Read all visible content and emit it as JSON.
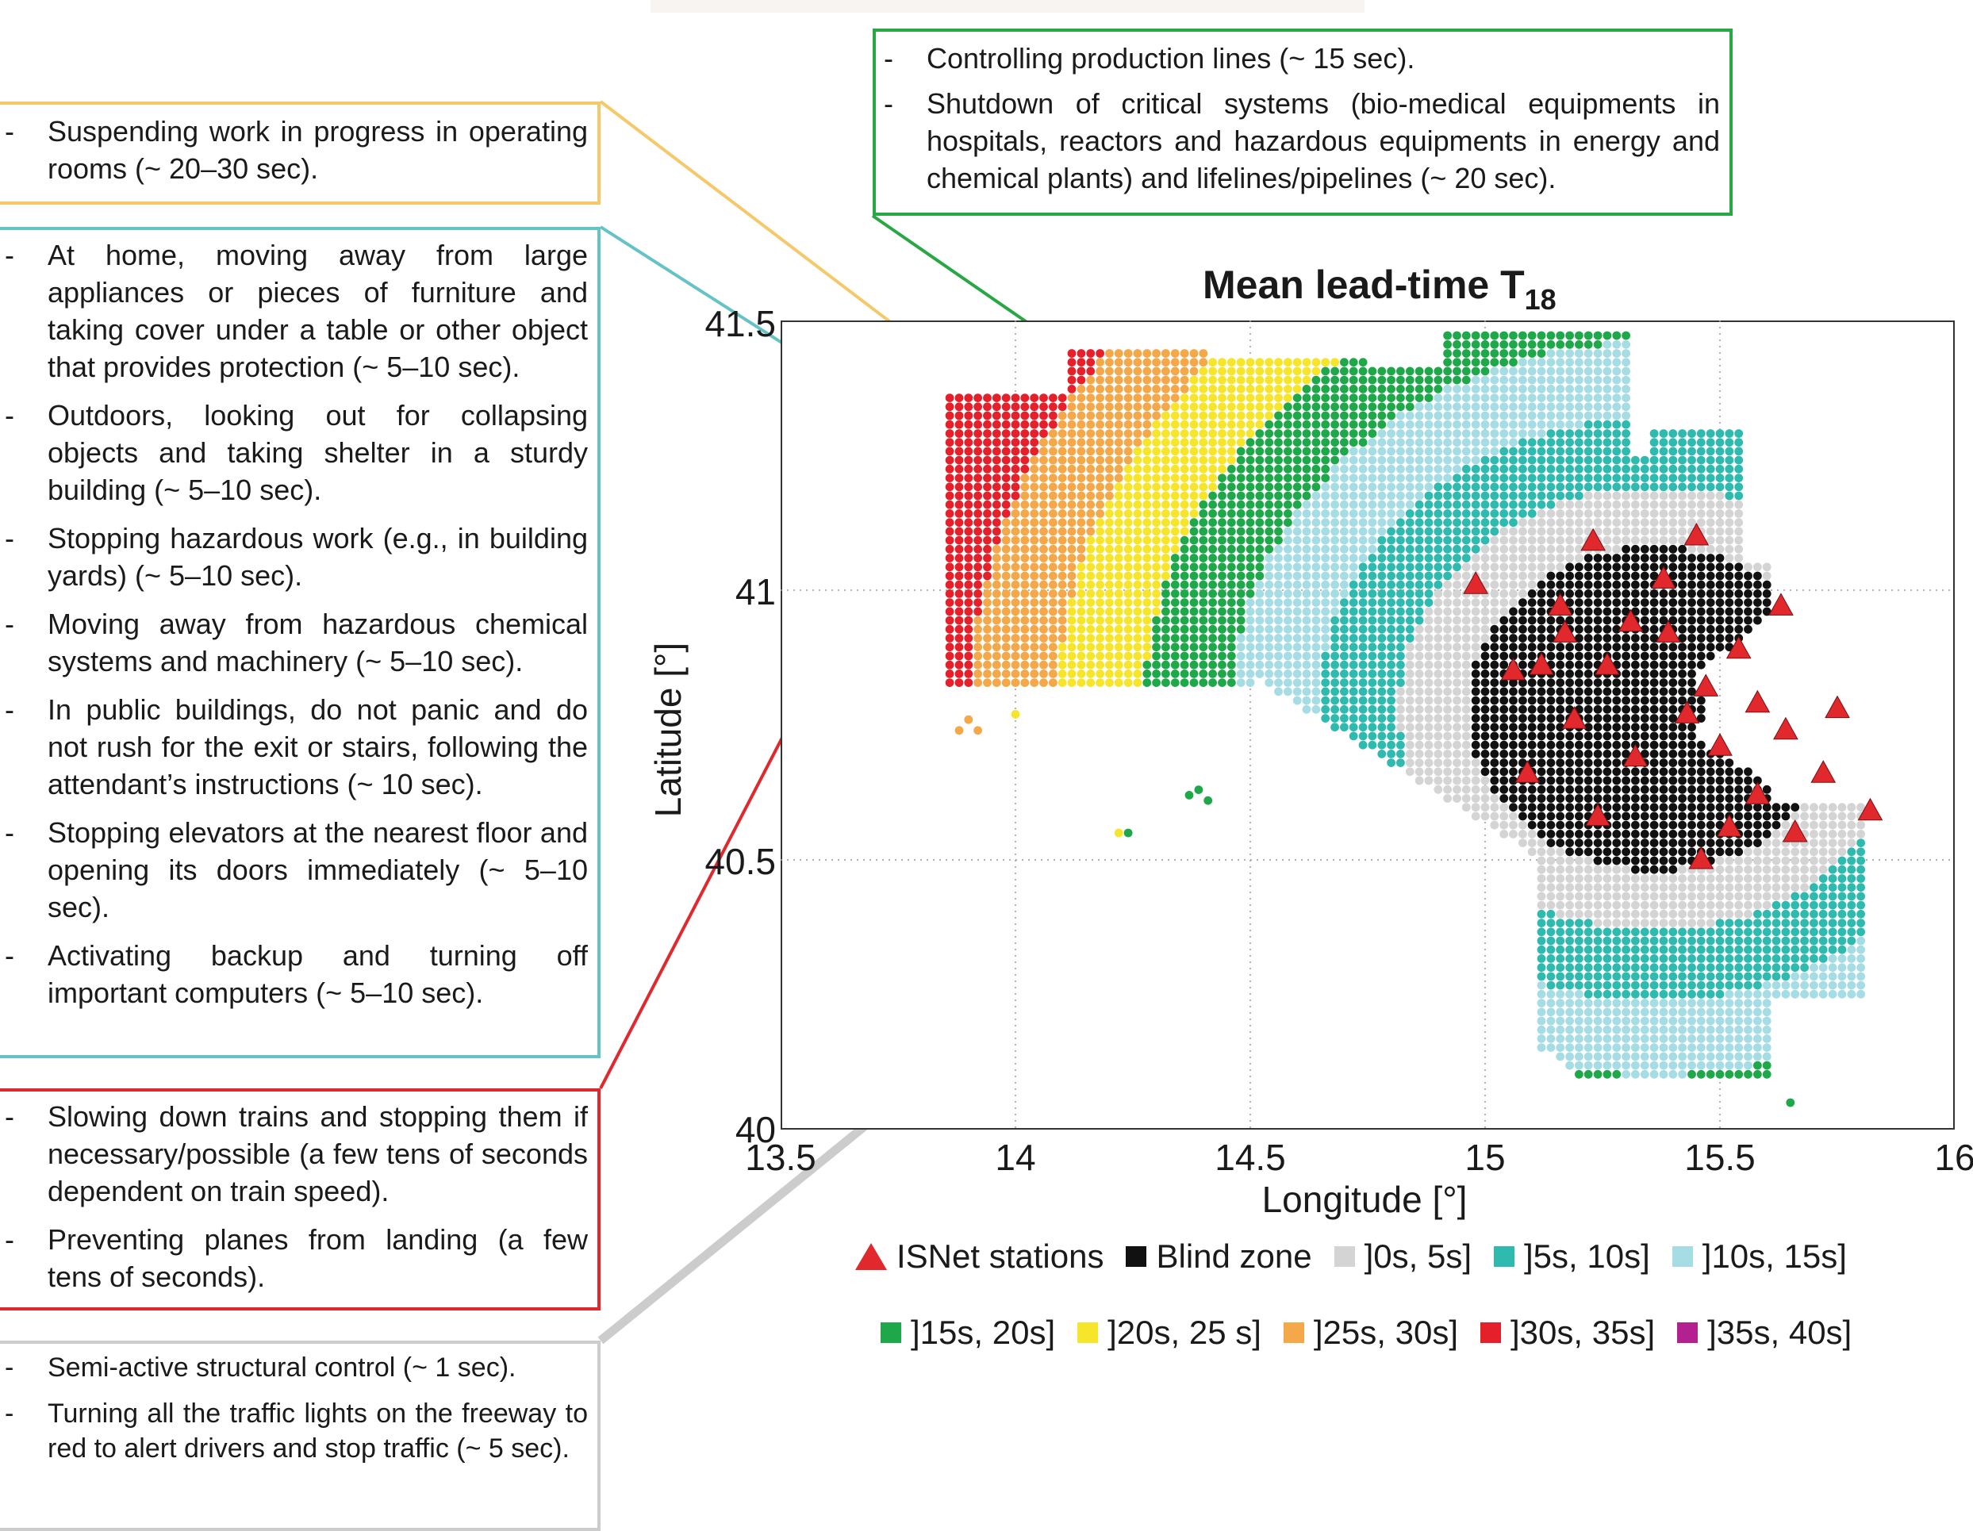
{
  "boxes": {
    "yellow": [
      "Suspending work in progress in operating rooms (~ 20–30 sec)."
    ],
    "teal": [
      "At home, moving away from large appliances or pieces of furniture and taking cover under a table or other object that provides protection (~ 5–10 sec).",
      "Outdoors, looking out for collapsing objects and taking shelter in a sturdy building (~ 5–10 sec).",
      "Stopping hazardous work (e.g., in building yards) (~ 5–10 sec).",
      "Moving away from hazardous chemical systems and machinery (~ 5–10 sec).",
      "In public buildings, do not panic and do not rush for the exit or stairs, following the attendant’s instructions (~ 10 sec).",
      "Stopping elevators at the nearest floor and opening its doors immediately (~ 5–10 sec).",
      "Activating backup and turning off important computers (~ 5–10 sec)."
    ],
    "red": [
      "Slowing down trains and stopping them if necessary/possible (a few tens of seconds dependent on train speed).",
      "Preventing planes from landing (a few tens of seconds)."
    ],
    "gray": [
      "Semi-active structural control (~ 1 sec).",
      "Turning all the traffic lights on the freeway to red to alert drivers and stop traffic (~ 5 sec)."
    ],
    "green": [
      "Controlling production lines (~ 15 sec).",
      "Shutdown of critical systems (bio-medical equipments in hospitals, reactors and hazardous equipments in energy and chemical plants) and lifelines/pipelines (~ 20 sec)."
    ]
  },
  "colors": {
    "stations": "#e0282d",
    "blind": "#111111",
    "c0_5": "#d4d4d4",
    "c5_10": "#2fbab0",
    "c10_15": "#a6dde4",
    "c15_20": "#1fa84a",
    "c20_25": "#f6e52a",
    "c25_30": "#f4a84a",
    "c30_35": "#e5202a",
    "c35_40": "#b3208f"
  },
  "chart_data": {
    "type": "scatter",
    "title_main": "Mean lead-time T",
    "title_sub": "18",
    "xlabel": "Longitude [°]",
    "ylabel": "Latitude [°]",
    "xlim": [
      13.5,
      16
    ],
    "ylim": [
      40,
      41.5
    ],
    "xticks": [
      "13.5",
      "14",
      "14.5",
      "15",
      "15.5",
      "16"
    ],
    "yticks": [
      "40",
      "40.5",
      "41",
      "41.5"
    ],
    "grid": true,
    "legend": [
      {
        "label": "ISNet stations",
        "key": "stations",
        "marker": "triangle"
      },
      {
        "label": "Blind zone",
        "key": "blind",
        "marker": "square"
      },
      {
        "label": "]0s, 5s]",
        "key": "c0_5",
        "marker": "square"
      },
      {
        "label": "]5s, 10s]",
        "key": "c5_10",
        "marker": "square"
      },
      {
        "label": "]10s, 15s]",
        "key": "c10_15",
        "marker": "square"
      },
      {
        "label": "]15s, 20s]",
        "key": "c15_20",
        "marker": "square"
      },
      {
        "label": "]20s, 25 s]",
        "key": "c20_25",
        "marker": "square"
      },
      {
        "label": "]25s, 30s]",
        "key": "c25_30",
        "marker": "square"
      },
      {
        "label": "]30s, 35s]",
        "key": "c30_35",
        "marker": "square"
      },
      {
        "label": "]35s, 40s]",
        "key": "c35_40",
        "marker": "square"
      }
    ],
    "epicentral_center": [
      15.36,
      40.78
    ],
    "stations": [
      [
        14.98,
        41.01
      ],
      [
        15.06,
        40.85
      ],
      [
        15.09,
        40.66
      ],
      [
        15.12,
        40.86
      ],
      [
        15.16,
        40.97
      ],
      [
        15.17,
        40.92
      ],
      [
        15.19,
        40.76
      ],
      [
        15.23,
        41.09
      ],
      [
        15.24,
        40.58
      ],
      [
        15.26,
        40.86
      ],
      [
        15.31,
        40.94
      ],
      [
        15.32,
        40.69
      ],
      [
        15.38,
        41.02
      ],
      [
        15.39,
        40.92
      ],
      [
        15.43,
        40.77
      ],
      [
        15.45,
        41.1
      ],
      [
        15.46,
        40.5
      ],
      [
        15.47,
        40.82
      ],
      [
        15.5,
        40.71
      ],
      [
        15.52,
        40.56
      ],
      [
        15.54,
        40.89
      ],
      [
        15.58,
        40.79
      ],
      [
        15.58,
        40.62
      ],
      [
        15.63,
        40.97
      ],
      [
        15.64,
        40.74
      ],
      [
        15.66,
        40.55
      ],
      [
        15.72,
        40.66
      ],
      [
        15.75,
        40.78
      ],
      [
        15.82,
        40.59
      ]
    ]
  }
}
